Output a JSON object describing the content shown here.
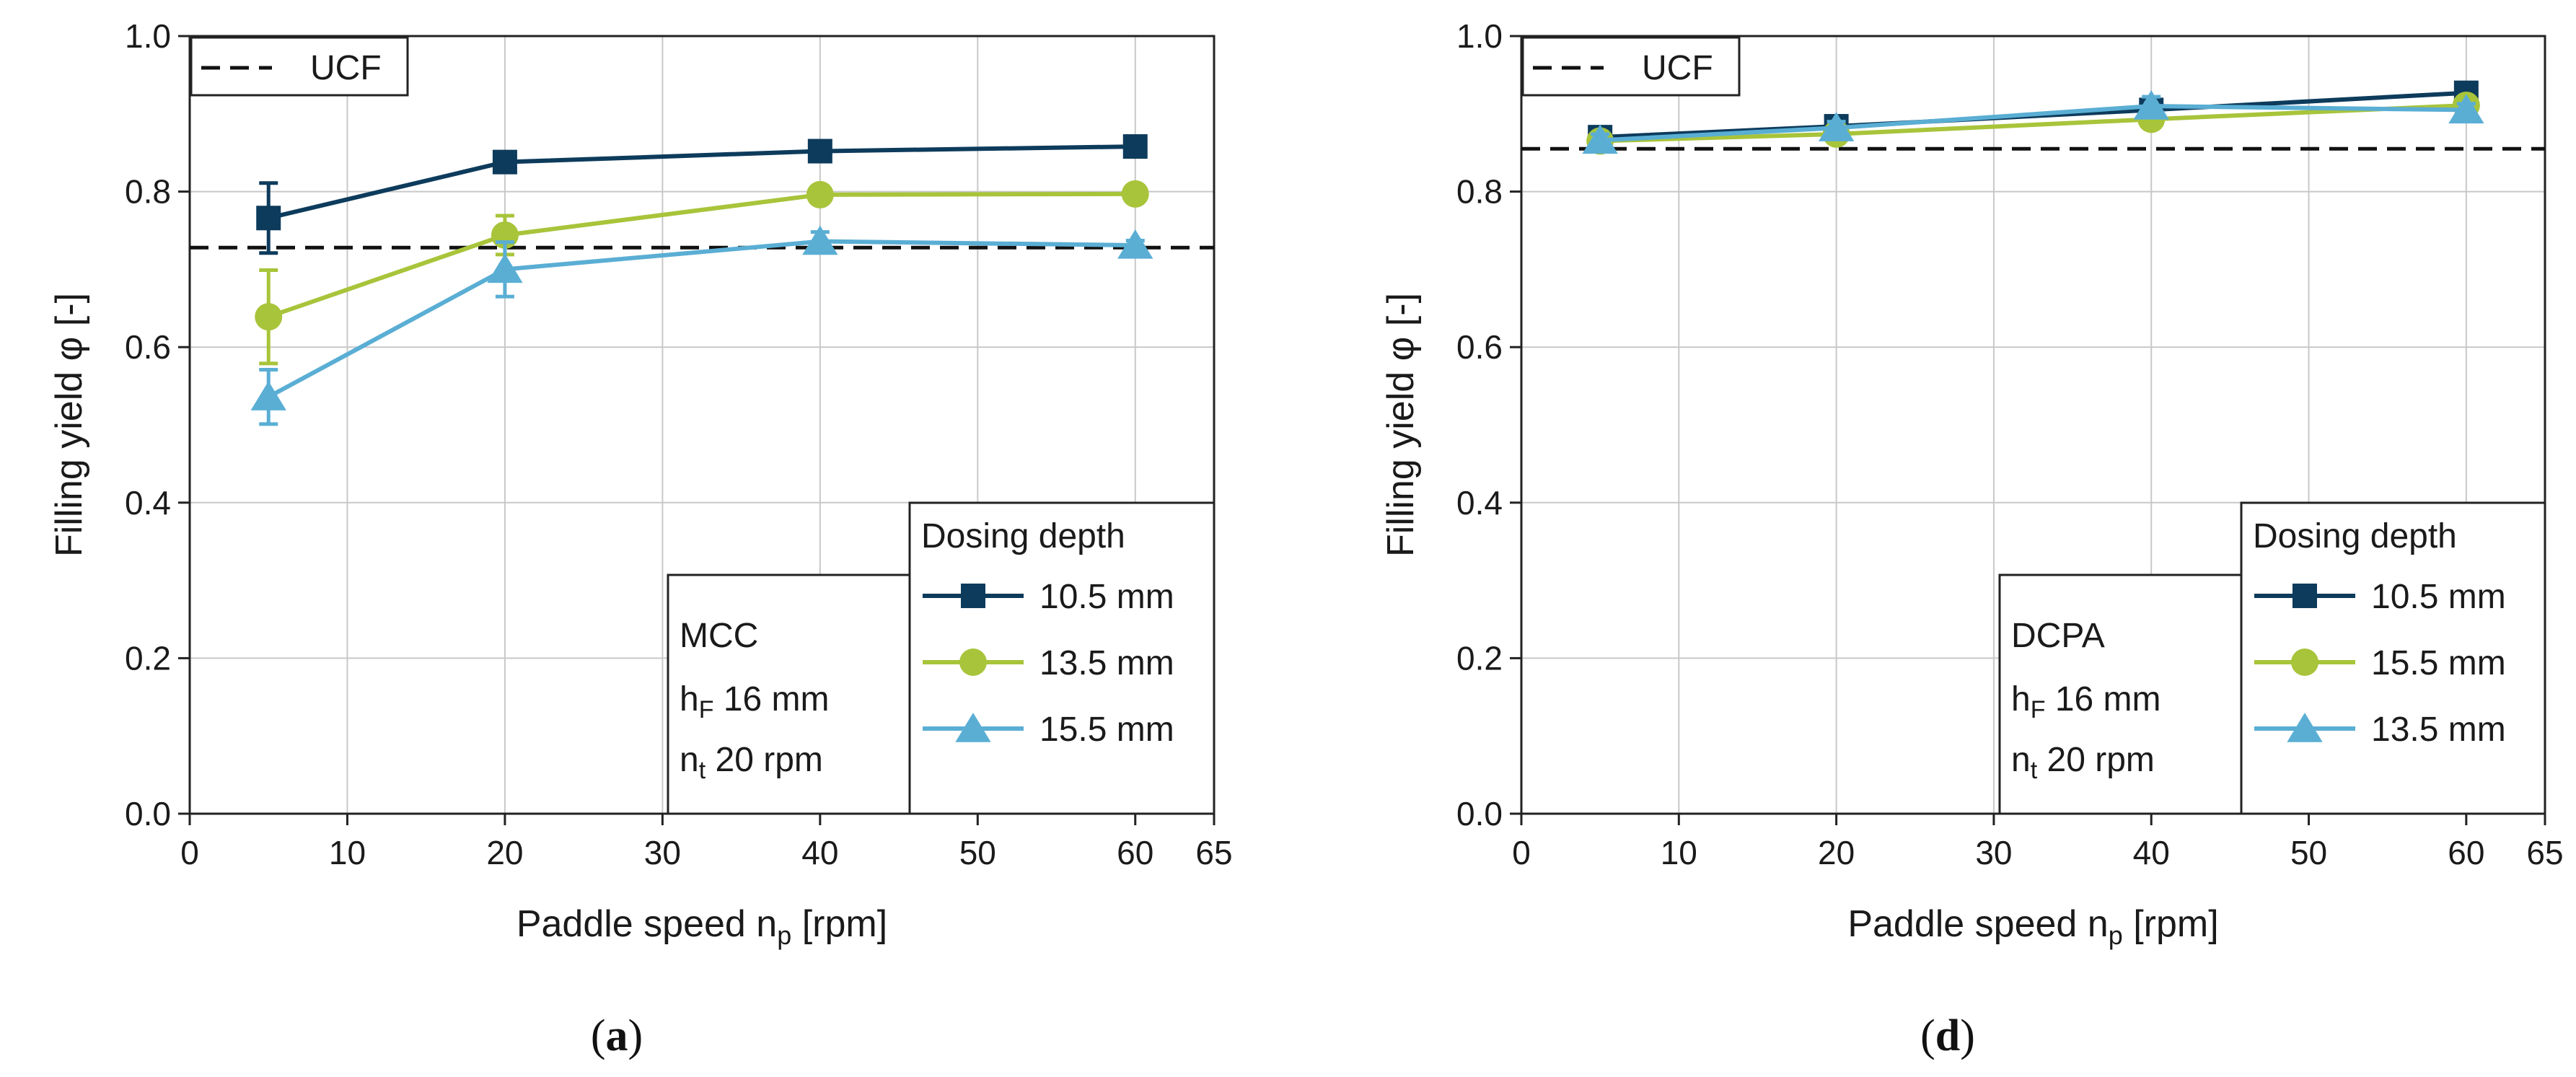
{
  "chart_data": [
    {
      "type": "line",
      "panel_label_open": "(",
      "panel_label_letter": "a",
      "panel_label_close": ")",
      "xlabel_main": "Paddle speed n",
      "xlabel_sub": "p",
      "xlabel_unit": " [rpm]",
      "ylabel": "Filling yield φ [-]",
      "xlim": [
        0,
        65
      ],
      "ylim": [
        0,
        1.0
      ],
      "x_ticks": [
        "0",
        "10",
        "20",
        "30",
        "40",
        "50",
        "60",
        "65"
      ],
      "x_tick_values": [
        0,
        10,
        20,
        30,
        40,
        50,
        60,
        65
      ],
      "y_ticks": [
        "0.0",
        "0.2",
        "0.4",
        "0.6",
        "0.8",
        "1.0"
      ],
      "y_tick_values": [
        0,
        0.2,
        0.4,
        0.6,
        0.8,
        1.0
      ],
      "grid": true,
      "reference_line": {
        "label": "UCF",
        "value": 0.728,
        "style": "dashed"
      },
      "material_box": {
        "material": "MCC",
        "line2_main": "h",
        "line2_sub": "F",
        "line2_rest": " 16 mm",
        "line3_main": "n",
        "line3_sub": "t",
        "line3_rest": " 20 rpm"
      },
      "legend_title": "Dosing depth",
      "series": [
        {
          "name": "10.5 mm",
          "marker": "square",
          "color": "#0d3b5c",
          "x": [
            5,
            20,
            40,
            60
          ],
          "y": [
            0.766,
            0.838,
            0.852,
            0.858
          ],
          "err": [
            0.045,
            0.008,
            0.006,
            0.005
          ]
        },
        {
          "name": "13.5 mm",
          "marker": "circle",
          "color": "#a8c43a",
          "x": [
            5,
            20,
            40,
            60
          ],
          "y": [
            0.639,
            0.744,
            0.796,
            0.797
          ],
          "err": [
            0.06,
            0.025,
            0.006,
            0.005
          ]
        },
        {
          "name": "15.5 mm",
          "marker": "triangle",
          "color": "#5aaed4",
          "x": [
            5,
            20,
            40,
            60
          ],
          "y": [
            0.536,
            0.7,
            0.736,
            0.731
          ],
          "err": [
            0.035,
            0.035,
            0.012,
            0.006
          ]
        }
      ]
    },
    {
      "type": "line",
      "panel_label_open": "(",
      "panel_label_letter": "d",
      "panel_label_close": ")",
      "xlabel_main": "Paddle speed n",
      "xlabel_sub": "p",
      "xlabel_unit": " [rpm]",
      "ylabel": "Filling yield φ [-]",
      "xlim": [
        0,
        65
      ],
      "ylim": [
        0,
        1.0
      ],
      "x_ticks": [
        "0",
        "10",
        "20",
        "30",
        "40",
        "50",
        "60",
        "65"
      ],
      "x_tick_values": [
        0,
        10,
        20,
        30,
        40,
        50,
        60,
        65
      ],
      "y_ticks": [
        "0.0",
        "0.2",
        "0.4",
        "0.6",
        "0.8",
        "1.0"
      ],
      "y_tick_values": [
        0,
        0.2,
        0.4,
        0.6,
        0.8,
        1.0
      ],
      "grid": true,
      "reference_line": {
        "label": "UCF",
        "value": 0.855,
        "style": "dashed"
      },
      "material_box": {
        "material": "DCPA",
        "line2_main": "h",
        "line2_sub": "F",
        "line2_rest": " 16 mm",
        "line3_main": "n",
        "line3_sub": "t",
        "line3_rest": " 20 rpm"
      },
      "legend_title": "Dosing depth",
      "series": [
        {
          "name": "10.5 mm",
          "marker": "square",
          "color": "#0d3b5c",
          "x": [
            5,
            20,
            40,
            60
          ],
          "y": [
            0.87,
            0.884,
            0.905,
            0.927
          ],
          "err": [
            0.01,
            0.008,
            0.012,
            0.006
          ]
        },
        {
          "name": "15.5 mm",
          "marker": "circle",
          "color": "#a8c43a",
          "x": [
            5,
            20,
            40,
            60
          ],
          "y": [
            0.865,
            0.874,
            0.893,
            0.911
          ],
          "err": [
            0.008,
            0.008,
            0.008,
            0.006
          ]
        },
        {
          "name": "13.5 mm",
          "marker": "triangle",
          "color": "#5aaed4",
          "x": [
            5,
            20,
            40,
            60
          ],
          "y": [
            0.866,
            0.882,
            0.91,
            0.905
          ],
          "err": [
            0.008,
            0.008,
            0.012,
            0.008
          ]
        }
      ]
    }
  ]
}
